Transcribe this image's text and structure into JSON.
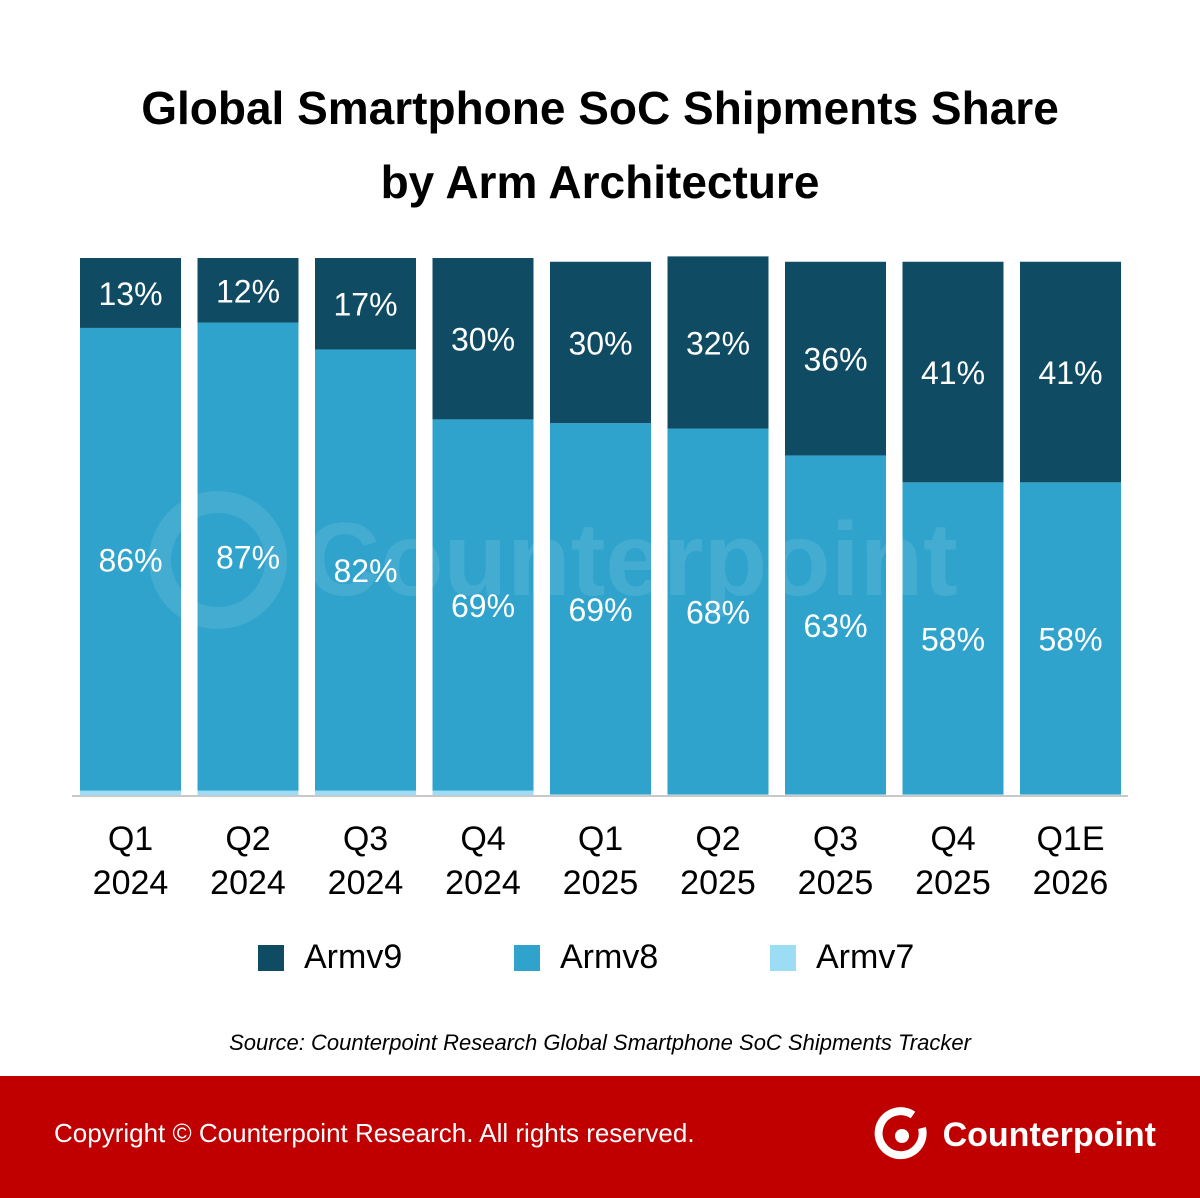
{
  "title": {
    "line1": "Global Smartphone SoC Shipments Share",
    "line2": "by Arm Architecture"
  },
  "chart_data": {
    "type": "bar",
    "stacked": true,
    "categories": [
      [
        "Q1",
        "2024"
      ],
      [
        "Q2",
        "2024"
      ],
      [
        "Q3",
        "2024"
      ],
      [
        "Q4",
        "2024"
      ],
      [
        "Q1",
        "2025"
      ],
      [
        "Q2",
        "2025"
      ],
      [
        "Q3",
        "2025"
      ],
      [
        "Q4",
        "2025"
      ],
      [
        "Q1E",
        "2026"
      ]
    ],
    "series": [
      {
        "name": "Armv7",
        "color": "#9ddcf5",
        "values": [
          1,
          1,
          1,
          1,
          0.3,
          0.3,
          0.3,
          0.3,
          0.3
        ]
      },
      {
        "name": "Armv8",
        "color": "#2fa3cc",
        "values": [
          86,
          87,
          82,
          69,
          69,
          68,
          63,
          58,
          58
        ]
      },
      {
        "name": "Armv9",
        "color": "#0f4c63",
        "values": [
          13,
          12,
          17,
          30,
          30,
          32,
          36,
          41,
          41
        ]
      }
    ],
    "data_labels": {
      "Armv8": [
        "86%",
        "87%",
        "82%",
        "69%",
        "69%",
        "68%",
        "63%",
        "58%",
        "58%"
      ],
      "Armv9": [
        "13%",
        "12%",
        "17%",
        "30%",
        "30%",
        "32%",
        "36%",
        "41%",
        "41%"
      ]
    },
    "ylim": [
      0,
      100
    ],
    "legend_position": "bottom",
    "grid": false
  },
  "legend": [
    {
      "label": "Armv9",
      "color": "#0f4c63"
    },
    {
      "label": "Armv8",
      "color": "#2fa3cc"
    },
    {
      "label": "Armv7",
      "color": "#9ddcf5"
    }
  ],
  "watermark": "Counterpoint",
  "source": "Source: Counterpoint Research Global Smartphone SoC Shipments Tracker",
  "footer": {
    "copyright": "Copyright © Counterpoint Research. All rights reserved.",
    "brand": "Counterpoint",
    "background": "#c00000"
  }
}
